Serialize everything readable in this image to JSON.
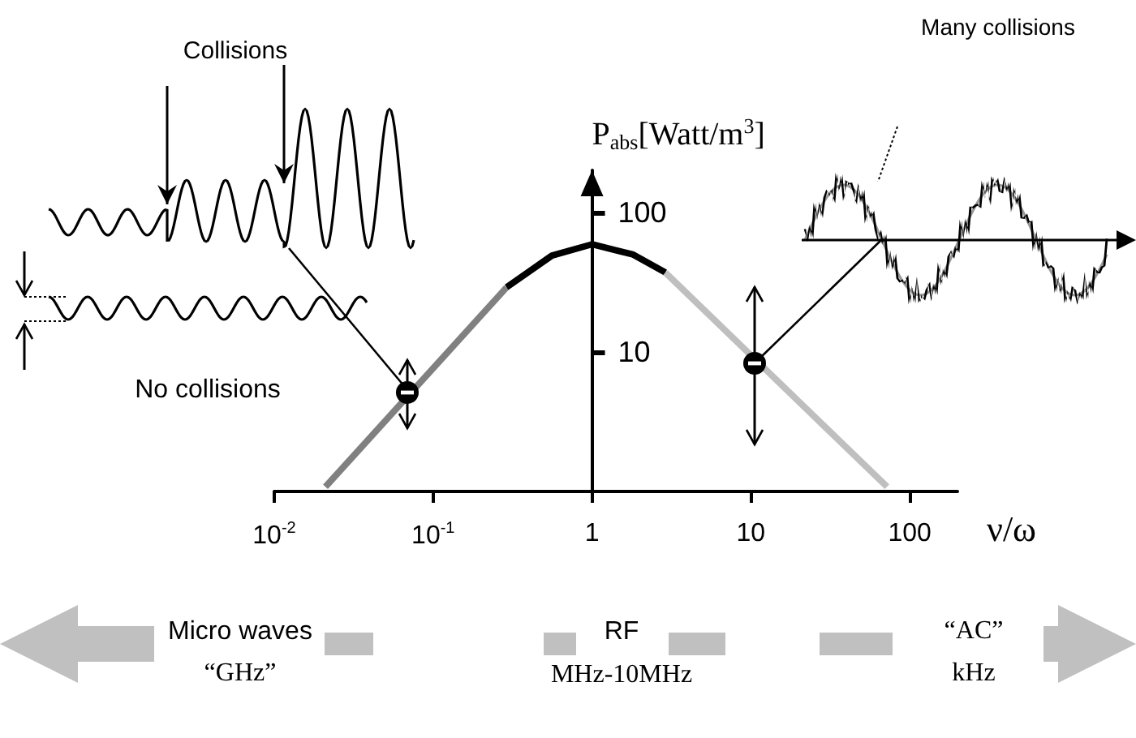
{
  "chart_data": {
    "type": "line",
    "xlabel": "ν/ω",
    "ylabel": "P$_{abs}$[Watt/m$^{3}$]",
    "log": "xy",
    "xlim": [
      0.01,
      200
    ],
    "ylim": [
      1,
      200
    ],
    "xticks": [
      {
        "value": 0.01,
        "label": "10$^{-2}$"
      },
      {
        "value": 0.1,
        "label": "10$^{-1}$"
      },
      1,
      10,
      100
    ],
    "yticks": [
      10,
      100
    ],
    "grid": false,
    "marker": "none",
    "series": [
      {
        "color": "#808080",
        "x": [
          0.021,
          0.29
        ],
        "values": [
          1.08,
          29
        ]
      },
      {
        "color": "#000000",
        "x": [
          0.29,
          0.56,
          1,
          1.8,
          2.9
        ],
        "values": [
          29,
          49,
          59,
          50,
          37
        ]
      },
      {
        "color": "#bfbfbf",
        "x": [
          2.9,
          72
        ],
        "values": [
          37,
          1.08
        ]
      }
    ],
    "annotations": [
      "Collisions",
      "No collisions",
      "Many collisions",
      "Micro waves",
      "“GHz”",
      "RF",
      "MHz-10MHz",
      "“AC”",
      "kHz"
    ]
  }
}
